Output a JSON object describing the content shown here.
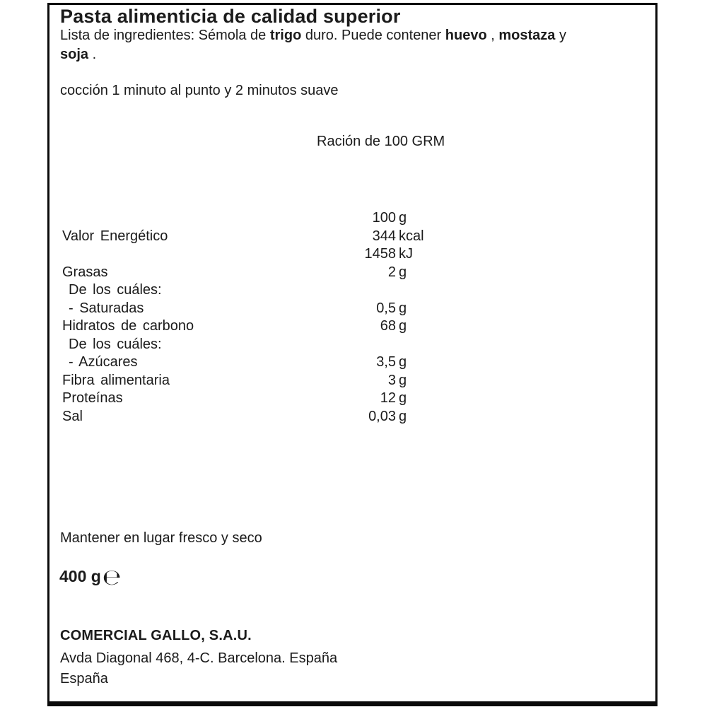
{
  "colors": {
    "background": "#ffffff",
    "border": "#0a0a0a",
    "text": "#1b1b1b"
  },
  "label": {
    "title": "Pasta alimenticia de calidad superior",
    "ingredients_parts": [
      {
        "text": "Lista de ingredientes: Sémola de ",
        "bold": false
      },
      {
        "text": "trigo",
        "bold": true
      },
      {
        "text": " duro. Puede contener ",
        "bold": false
      },
      {
        "text": "huevo",
        "bold": true
      },
      {
        "text": " , ",
        "bold": false
      },
      {
        "text": "mostaza",
        "bold": true
      },
      {
        "text": " y",
        "bold": false
      },
      {
        "br": true
      },
      {
        "text": "soja",
        "bold": true
      },
      {
        "text": " .",
        "bold": false
      }
    ],
    "cooking_instructions": "cocción 1 minuto al punto y 2 minutos suave",
    "serving_heading": "Ración de 100 GRM",
    "nutrition": {
      "rows": [
        {
          "label": "",
          "value": "100",
          "unit": "g",
          "indent": false
        },
        {
          "label": "Valor Energético",
          "value": "344",
          "unit": "kcal",
          "indent": false
        },
        {
          "label": "",
          "value": "1458",
          "unit": "kJ",
          "indent": false
        },
        {
          "label": "Grasas",
          "value": "2",
          "unit": "g",
          "indent": false
        },
        {
          "label": "De los cuáles:",
          "value": "",
          "unit": "",
          "indent": true
        },
        {
          "label": "- Saturadas",
          "value": "0,5",
          "unit": "g",
          "indent": true
        },
        {
          "label": "Hidratos de carbono",
          "value": "68",
          "unit": "g",
          "indent": false
        },
        {
          "label": "De los cuáles:",
          "value": "",
          "unit": "",
          "indent": true
        },
        {
          "label": "- Azúcares",
          "value": "3,5",
          "unit": "g",
          "indent": true
        },
        {
          "label": "Fibra alimentaria",
          "value": "3",
          "unit": "g",
          "indent": false
        },
        {
          "label": "Proteínas",
          "value": "12",
          "unit": "g",
          "indent": false
        },
        {
          "label": "Sal",
          "value": "0,03",
          "unit": "g",
          "indent": false
        }
      ]
    },
    "storage": "Mantener en lugar fresco y seco",
    "net_weight": "400 g",
    "estimated_sign": "℮",
    "manufacturer": "COMERCIAL GALLO, S.A.U.",
    "address": "Avda Diagonal 468, 4-C. Barcelona. España",
    "country": "España"
  }
}
